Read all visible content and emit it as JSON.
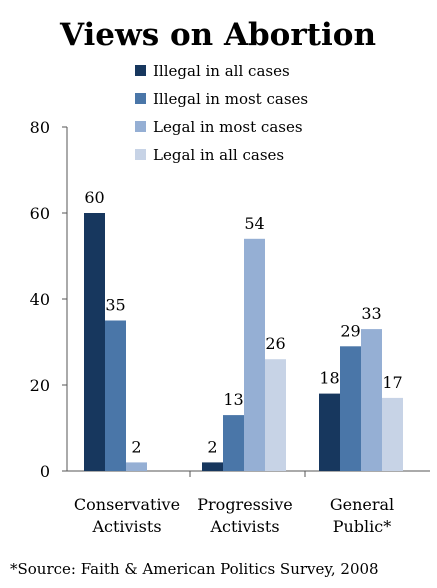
{
  "chart_data": {
    "type": "bar",
    "title": "Views on Abortion",
    "categories": [
      "Conservative Activists",
      "Progressive Activists",
      "General Public*"
    ],
    "category_lines": [
      [
        "Conservative",
        "Activists"
      ],
      [
        "Progressive",
        "Activists"
      ],
      [
        "General",
        "Public*"
      ]
    ],
    "series": [
      {
        "name": "Illegal in all cases",
        "color": "#17375e",
        "values": [
          60,
          2,
          18
        ]
      },
      {
        "name": "Illegal in most cases",
        "color": "#4a76a8",
        "values": [
          35,
          13,
          29
        ]
      },
      {
        "name": "Legal in most cases",
        "color": "#95afd4",
        "values": [
          2,
          54,
          33
        ]
      },
      {
        "name": "Legal in all cases",
        "color": "#c7d3e6",
        "values": [
          null,
          26,
          17
        ]
      }
    ],
    "ylim": [
      0,
      80
    ],
    "yticks": [
      0,
      20,
      40,
      60,
      80
    ],
    "xlabel": "",
    "ylabel": "",
    "grid": false,
    "legend_position": "top-right"
  },
  "footer": {
    "source": "*Source: Faith & American Politics Survey, 2008"
  }
}
